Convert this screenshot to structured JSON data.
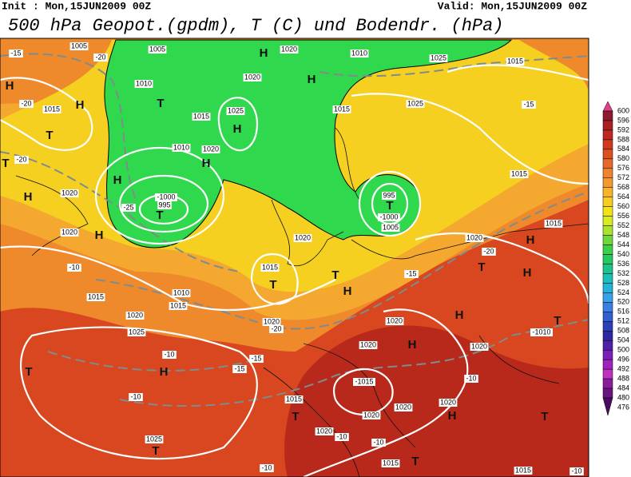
{
  "header": {
    "init": "Init : Mon,15JUN2009 00Z",
    "valid": "Valid: Mon,15JUN2009 00Z",
    "title": "500 hPa Geopot.(gpdm), T (C) und Bodendr. (hPa)"
  },
  "colorbar": {
    "levels": [
      600,
      596,
      592,
      588,
      584,
      580,
      576,
      572,
      568,
      564,
      560,
      556,
      552,
      548,
      544,
      540,
      536,
      532,
      528,
      524,
      520,
      516,
      512,
      508,
      504,
      500,
      496,
      492,
      488,
      484,
      480,
      476
    ],
    "colors": [
      "#e0408a",
      "#8e1a2e",
      "#a91f24",
      "#c0281f",
      "#d0391e",
      "#dc4f1e",
      "#e6682a",
      "#ee8430",
      "#f29a30",
      "#f6b428",
      "#f7cd20",
      "#f2e21a",
      "#d8ea22",
      "#a8e42c",
      "#6ed83a",
      "#3ccf48",
      "#22c860",
      "#1ac48c",
      "#18c0b8",
      "#22b4d8",
      "#3aa0e8",
      "#3a80e0",
      "#3060d0",
      "#2a40b8",
      "#3028a0",
      "#5020a8",
      "#7a20b8",
      "#a020c0",
      "#c030c0",
      "#8a1c9a",
      "#6a1480",
      "#4a0c60"
    ]
  },
  "map_labels": [
    "-15",
    "-20",
    "1005",
    "1005",
    "H",
    "1020",
    "1010",
    "1025",
    "1015",
    "H",
    "-20",
    "1015",
    "H",
    "1010",
    "T",
    "1015",
    "1025",
    "1020",
    "H",
    "1015",
    "1025",
    "-15",
    "T",
    "H",
    "1010",
    "1020",
    "H",
    "-20",
    "T",
    "H",
    "995",
    "T",
    "-1000",
    "-25",
    "H",
    "1020",
    "1020",
    "H",
    "995",
    "T",
    "-1000",
    "1005",
    "1015",
    "1015",
    "H",
    "-10",
    "1015",
    "1010",
    "1015",
    "T",
    "1015",
    "1020",
    "T",
    "H",
    "1020",
    "-20",
    "-15",
    "T",
    "H",
    "1020",
    "1025",
    "1020",
    "-20",
    "1020",
    "H",
    "1020",
    "H",
    "1020",
    "-1010",
    "T",
    "-10",
    "H",
    "T",
    "-15",
    "-15",
    "-1015",
    "-10",
    "-10",
    "1015",
    "T",
    "1020",
    "1020",
    "1020",
    "H",
    "T",
    "1025",
    "T",
    "1020",
    "-10",
    "-10",
    "T",
    "1015",
    "-10",
    "1015",
    "-10"
  ]
}
